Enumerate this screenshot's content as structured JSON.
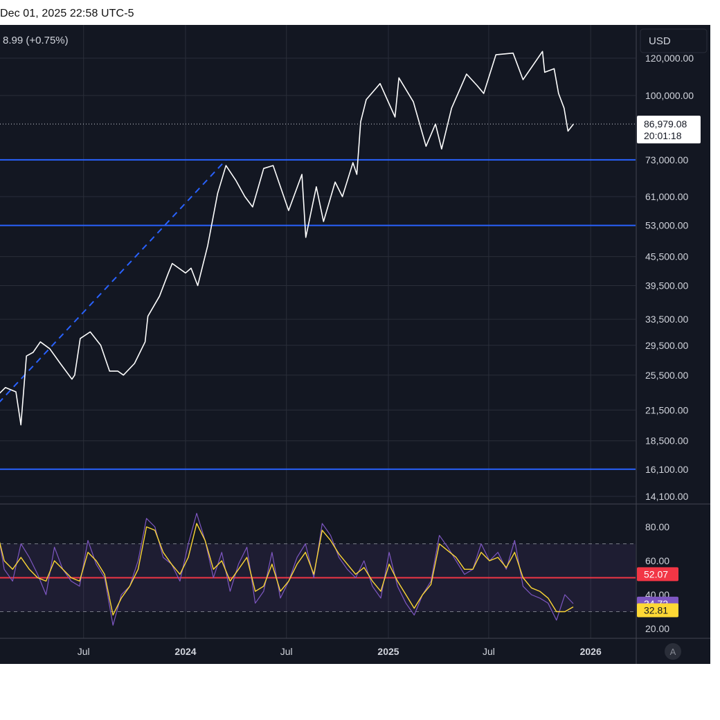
{
  "header": {
    "timestamp": "Dec 01, 2025 22:58 UTC-5",
    "change_text": "8.99 (+0.75%)"
  },
  "currency_button": "USD",
  "auto_scale_button": "A",
  "colors": {
    "background": "#131722",
    "grid": "#2a2e39",
    "price_line": "#ffffff",
    "support_lines": "#2962ff",
    "trend_line": "#2962ff",
    "rsi_line": "#7e57c2",
    "rsi_ma_line": "#fdd835",
    "rsi_mid_line": "#f23645",
    "rsi_band_fill": "#7e57c2"
  },
  "chart_data": [
    {
      "type": "line",
      "scale": "log",
      "ylim": [
        14100,
        125000
      ],
      "y_ticks": [
        "120,000.00",
        "100,000.00",
        "73,000.00",
        "61,000.00",
        "53,000.00",
        "45,500.00",
        "39,500.00",
        "33,500.00",
        "29,500.00",
        "25,500.00",
        "21,500.00",
        "18,500.00",
        "16,100.00",
        "14,100.00"
      ],
      "x_ticks": [
        "Jul",
        "2024",
        "Jul",
        "2025",
        "Jul",
        "2026"
      ],
      "x": [
        "2023-01-25",
        "2023-02-10",
        "2023-03-01",
        "2023-03-10",
        "2023-03-20",
        "2023-04-01",
        "2023-04-14",
        "2023-05-01",
        "2023-05-20",
        "2023-06-10",
        "2023-06-15",
        "2023-06-25",
        "2023-07-13",
        "2023-08-01",
        "2023-08-17",
        "2023-09-01",
        "2023-09-11",
        "2023-10-01",
        "2023-10-20",
        "2023-10-25",
        "2023-11-15",
        "2023-12-01",
        "2023-12-08",
        "2024-01-01",
        "2024-01-11",
        "2024-01-23",
        "2024-02-10",
        "2024-02-28",
        "2024-03-14",
        "2024-04-01",
        "2024-04-17",
        "2024-05-01",
        "2024-05-21",
        "2024-06-07",
        "2024-07-05",
        "2024-07-29",
        "2024-08-05",
        "2024-08-24",
        "2024-09-06",
        "2024-09-27",
        "2024-10-10",
        "2024-10-29",
        "2024-11-05",
        "2024-11-12",
        "2024-11-22",
        "2024-12-17",
        "2025-01-13",
        "2025-01-20",
        "2025-02-15",
        "2025-03-10",
        "2025-03-27",
        "2025-04-07",
        "2025-04-25",
        "2025-05-22",
        "2025-06-10",
        "2025-06-22",
        "2025-07-14",
        "2025-08-14",
        "2025-09-01",
        "2025-10-06",
        "2025-10-10",
        "2025-10-27",
        "2025-11-04",
        "2025-11-14",
        "2025-11-21",
        "2025-12-01"
      ],
      "values": [
        23000,
        24000,
        23500,
        20000,
        28000,
        28500,
        30000,
        29000,
        27000,
        25000,
        25500,
        30500,
        31500,
        29500,
        26000,
        26000,
        25500,
        27000,
        30000,
        34000,
        37500,
        42000,
        44000,
        42000,
        43000,
        39500,
        48000,
        62000,
        71000,
        66000,
        61000,
        58000,
        70000,
        71000,
        57000,
        68000,
        50000,
        64000,
        54000,
        65500,
        61000,
        72000,
        68000,
        88000,
        98000,
        106000,
        90000,
        109000,
        97000,
        78000,
        87000,
        77000,
        94000,
        111000,
        105000,
        101000,
        122000,
        123000,
        108000,
        124000,
        112000,
        114000,
        101000,
        94000,
        84000,
        86979
      ],
      "current_price": "86,979.08",
      "countdown": "20:01:18",
      "horizontal_levels": [
        73000,
        53000,
        16100
      ],
      "trend_line": {
        "from": {
          "x": "2022-12-05",
          "y": 19000
        },
        "to": {
          "x": "2024-03-14",
          "y": 73000
        }
      }
    },
    {
      "type": "line",
      "ylim": [
        20,
        90
      ],
      "y_ticks": [
        "80.00",
        "60.00",
        "40.00",
        "20.00"
      ],
      "levels": [
        70,
        50,
        30
      ],
      "series": [
        {
          "values": [
            84,
            55,
            48,
            70,
            62,
            52,
            40,
            68,
            55,
            48,
            45,
            72,
            58,
            50,
            22,
            40,
            45,
            60,
            85,
            80,
            62,
            58,
            48,
            70,
            88,
            72,
            50,
            65,
            42,
            58,
            68,
            35,
            42,
            65,
            38,
            48,
            62,
            70,
            50,
            82,
            75,
            62,
            55,
            50,
            60,
            45,
            38,
            65,
            45,
            35,
            28,
            40,
            48,
            75,
            68,
            60,
            52,
            55,
            70,
            60,
            65,
            55,
            72,
            45,
            40,
            38,
            35,
            25,
            40,
            34.72
          ]
        },
        {
          "values": [
            80,
            60,
            55,
            62,
            55,
            50,
            48,
            60,
            55,
            50,
            48,
            65,
            60,
            52,
            28,
            38,
            45,
            55,
            80,
            78,
            65,
            58,
            52,
            62,
            82,
            72,
            55,
            60,
            48,
            55,
            62,
            42,
            45,
            58,
            42,
            48,
            58,
            65,
            52,
            78,
            72,
            64,
            58,
            52,
            56,
            48,
            42,
            58,
            48,
            40,
            32,
            40,
            46,
            70,
            66,
            62,
            55,
            55,
            65,
            60,
            62,
            56,
            65,
            50,
            44,
            42,
            38,
            30,
            30,
            32.81
          ]
        }
      ],
      "mid_value": "52.07",
      "rsi_value": "34.72",
      "rsi_ma_value": "32.81"
    }
  ]
}
